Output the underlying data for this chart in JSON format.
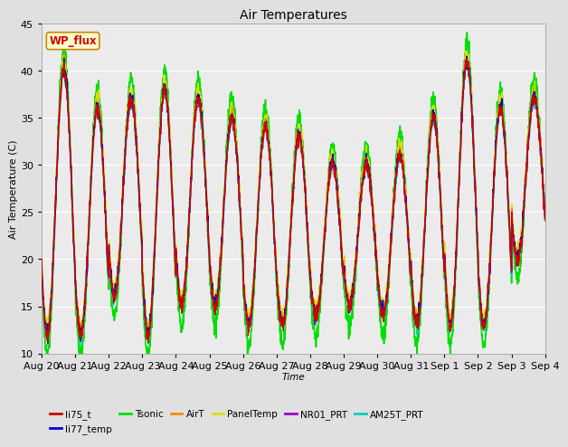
{
  "title": "Air Temperatures",
  "xlabel": "Time",
  "ylabel": "Air Temperature (C)",
  "ylim": [
    10,
    45
  ],
  "series": {
    "li75_t": {
      "color": "#cc0000",
      "lw": 1.0,
      "zorder": 4
    },
    "li77_temp": {
      "color": "#0000cc",
      "lw": 1.0,
      "zorder": 4
    },
    "Tsonic": {
      "color": "#00dd00",
      "lw": 1.2,
      "zorder": 2
    },
    "AirT": {
      "color": "#ff8800",
      "lw": 1.0,
      "zorder": 4
    },
    "PanelTemp": {
      "color": "#dddd00",
      "lw": 1.0,
      "zorder": 4
    },
    "NR01_PRT": {
      "color": "#9900cc",
      "lw": 1.0,
      "zorder": 4
    },
    "AM25T_PRT": {
      "color": "#00cccc",
      "lw": 1.2,
      "zorder": 3
    }
  },
  "legend_row1": [
    "li75_t",
    "li77_temp",
    "Tsonic",
    "AirT",
    "PanelTemp",
    "NR01_PRT"
  ],
  "legend_row2": [
    "AM25T_PRT"
  ],
  "wp_flux_label": "WP_flux",
  "wp_flux_color": "#cc0000",
  "wp_flux_bg": "#ffffcc",
  "wp_flux_border": "#cc8800",
  "fig_bg": "#e0e0e0",
  "plot_bg": "#ebebeb",
  "grid_color": "#ffffff",
  "tick_labels": [
    "Aug 20",
    "Aug 21",
    "Aug 22",
    "Aug 23",
    "Aug 24",
    "Aug 25",
    "Aug 26",
    "Aug 27",
    "Aug 28",
    "Aug 29",
    "Aug 30",
    "Aug 31",
    "Sep 1",
    "Sep 2",
    "Sep 3",
    "Sep 4"
  ],
  "num_days": 15
}
